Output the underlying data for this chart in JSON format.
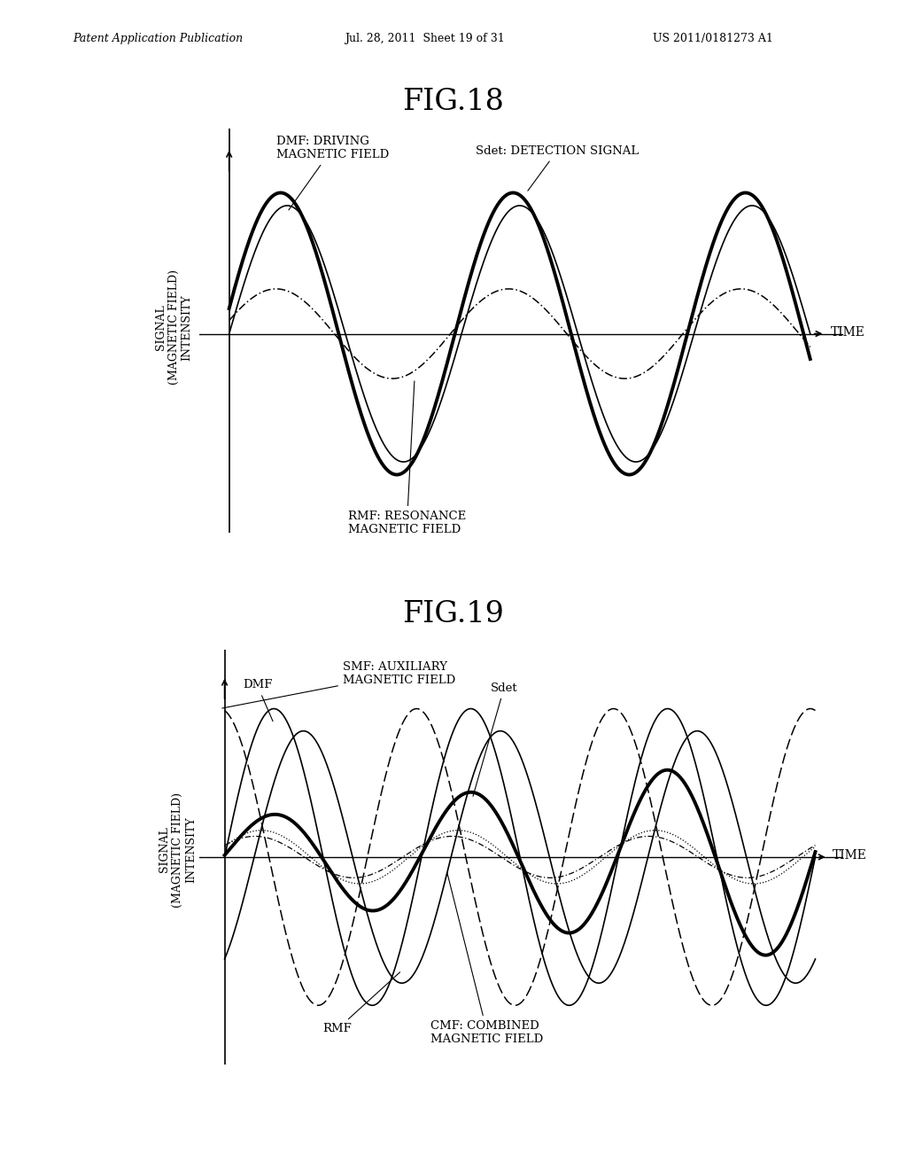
{
  "header_left": "Patent Application Publication",
  "header_mid": "Jul. 28, 2011  Sheet 19 of 31",
  "header_right": "US 2011/0181273 A1",
  "fig18_title": "FIG.18",
  "fig19_title": "FIG.19",
  "ylabel": "SIGNAL\n(MAGNETIC FIELD)\nINTENSITY",
  "xlabel": "TIME",
  "background_color": "#ffffff"
}
